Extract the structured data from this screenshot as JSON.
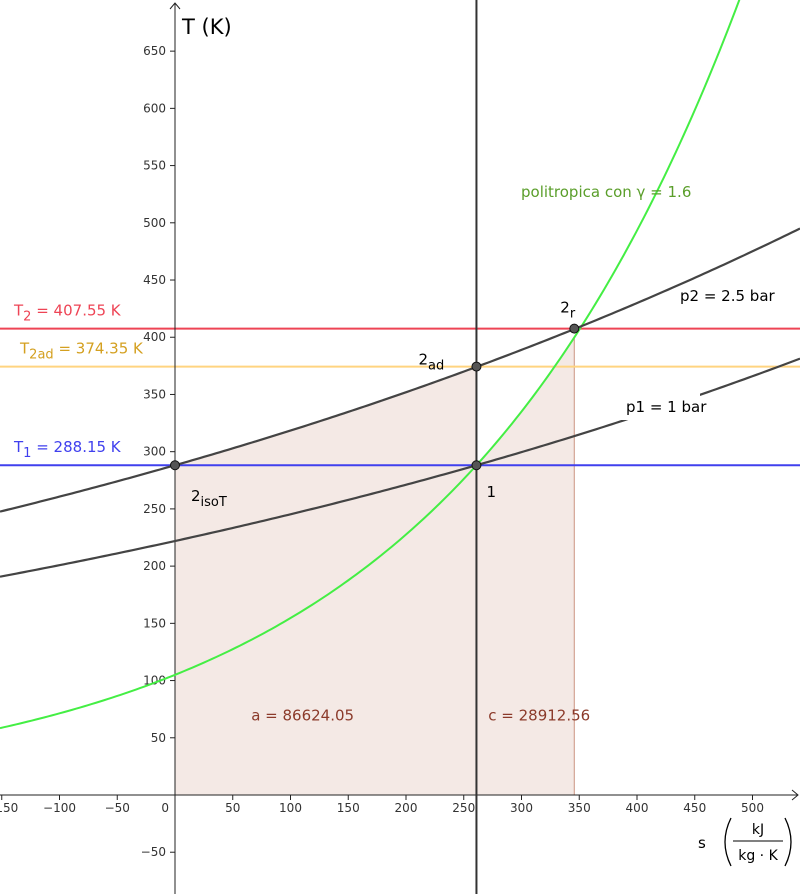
{
  "chart_data": {
    "type": "line",
    "title": "",
    "xlabel": "s",
    "xlabel_unit_num": "kJ",
    "xlabel_unit_den": "kg · K",
    "ylabel": "T (K)",
    "xlim": [
      -150,
      560
    ],
    "ylim": [
      -85,
      688
    ],
    "x_ticks": [
      -150,
      -100,
      -50,
      50,
      100,
      150,
      200,
      250,
      300,
      350,
      400,
      450,
      500
    ],
    "y_ticks": [
      -50,
      50,
      100,
      150,
      200,
      250,
      300,
      350,
      400,
      450,
      500,
      550,
      600,
      650
    ],
    "origin_label": "0",
    "grid": false,
    "colors": {
      "T1": "#4040ee",
      "T2": "#ee4455",
      "T2ad": "#ffd480",
      "T2ad_text": "#d4a020",
      "politropica": "#44ee44",
      "politropica_text": "#5a9e2a",
      "isobar": "#444444",
      "area_fill": "#b86a50",
      "area_text": "#8b3a2a"
    },
    "horizontal_lines": [
      {
        "id": "T2",
        "label_main": "T",
        "label_sub": "2",
        "label_rest": " = 407.55 K",
        "value": 407.55
      },
      {
        "id": "T2ad",
        "label_main": "T",
        "label_sub": "2ad",
        "label_rest": " = 374.35 K",
        "value": 374.35
      },
      {
        "id": "T1",
        "label_main": "T",
        "label_sub": "1",
        "label_rest": " = 288.15 K",
        "value": 288.15
      }
    ],
    "vertical_line": {
      "s": 261
    },
    "curves": [
      {
        "id": "politropica",
        "name": "politropica con γ = 1.6",
        "T_ref": 288.15,
        "s_ref": 261,
        "scale_cp": 0.2586
      },
      {
        "id": "p2",
        "name": "p2 = 2.5 bar",
        "T_ref": 288.15,
        "s_ref": 0,
        "scale_cp": 1.0
      },
      {
        "id": "p1",
        "name": "p1 = 1 bar",
        "T_ref": 288.15,
        "s_ref": 261,
        "scale_cp": 1.0
      }
    ],
    "points": [
      {
        "id": "1",
        "label_main": "1",
        "label_sub": "",
        "s": 261,
        "T": 288.15
      },
      {
        "id": "2isoT",
        "label_main": "2",
        "label_sub": "isoT",
        "s": 0,
        "T": 288.15
      },
      {
        "id": "2ad",
        "label_main": "2",
        "label_sub": "ad",
        "s": 261,
        "T": 374.35
      },
      {
        "id": "2r",
        "label_main": "2",
        "label_sub": "r",
        "s": 345.7,
        "T": 407.55
      }
    ],
    "areas": [
      {
        "id": "a",
        "label": "a = 86624.05",
        "value": 86624.05,
        "s_from": 0,
        "s_to": 261
      },
      {
        "id": "c",
        "label": "c = 28912.56",
        "value": 28912.56,
        "s_from": 261,
        "s_to": 345.7
      }
    ]
  }
}
